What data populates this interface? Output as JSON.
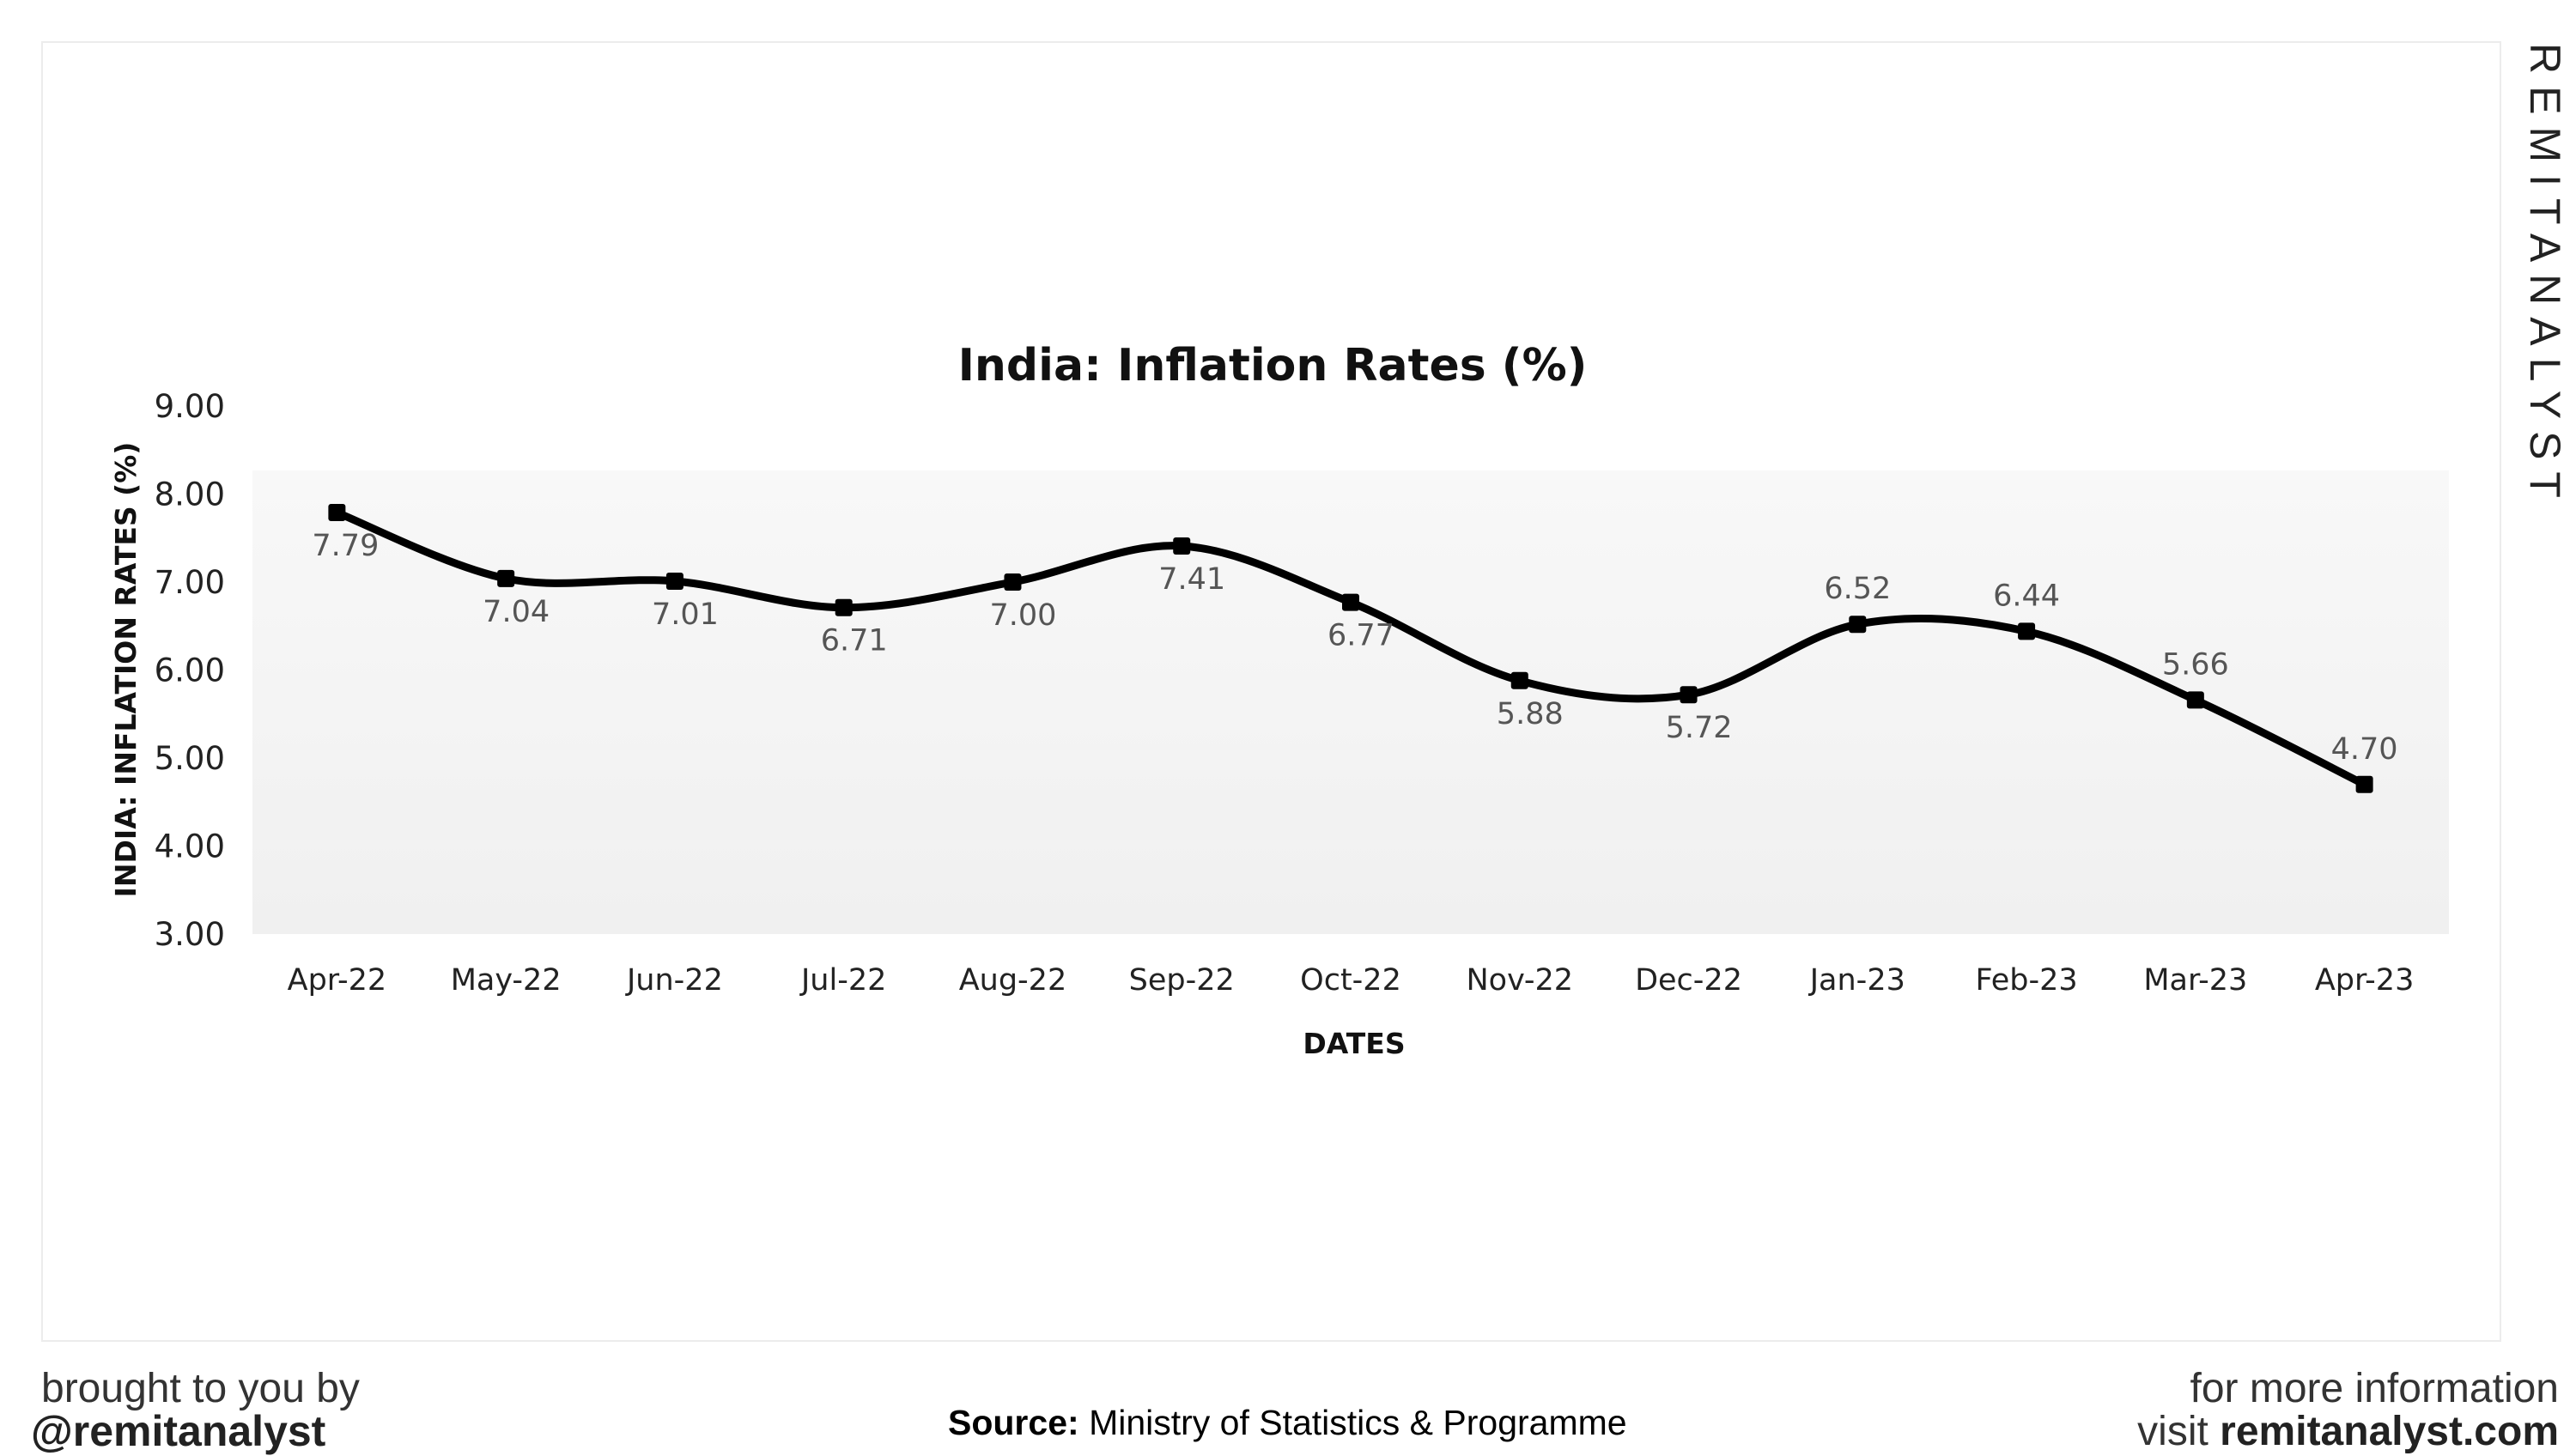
{
  "chart_data": {
    "type": "line",
    "title": "India: Inflation Rates (%)",
    "xlabel": "DATES",
    "ylabel": "INDIA: INFLATION RATES (%)",
    "categories": [
      "Apr-22",
      "May-22",
      "Jun-22",
      "Jul-22",
      "Aug-22",
      "Sep-22",
      "Oct-22",
      "Nov-22",
      "Dec-22",
      "Jan-23",
      "Feb-23",
      "Mar-23",
      "Apr-23"
    ],
    "values": [
      7.79,
      7.04,
      7.01,
      6.71,
      7.0,
      7.41,
      6.77,
      5.88,
      5.72,
      6.52,
      6.44,
      5.66,
      4.7
    ],
    "data_labels": [
      "7.79",
      "7.04",
      "7.01",
      "6.71",
      "7.00",
      "7.41",
      "6.77",
      "5.88",
      "5.72",
      "6.52",
      "6.44",
      "5.66",
      "4.70"
    ],
    "yticks": [
      "3.00",
      "4.00",
      "5.00",
      "6.00",
      "7.00",
      "8.00",
      "9.00"
    ],
    "ylim": [
      3,
      9
    ],
    "grid": false,
    "smooth": true,
    "line_color": "#000000",
    "plot_background": "#f3f3f3"
  },
  "branding": {
    "watermark": "REMITANALYST",
    "brought_by": "brought to you by",
    "handle": "@remitanalyst",
    "more_info": "for more information",
    "visit_prefix": "visit",
    "website": "remitanalyst.com"
  },
  "source": {
    "label": "Source:",
    "text": "Ministry of Statistics & Programme"
  }
}
